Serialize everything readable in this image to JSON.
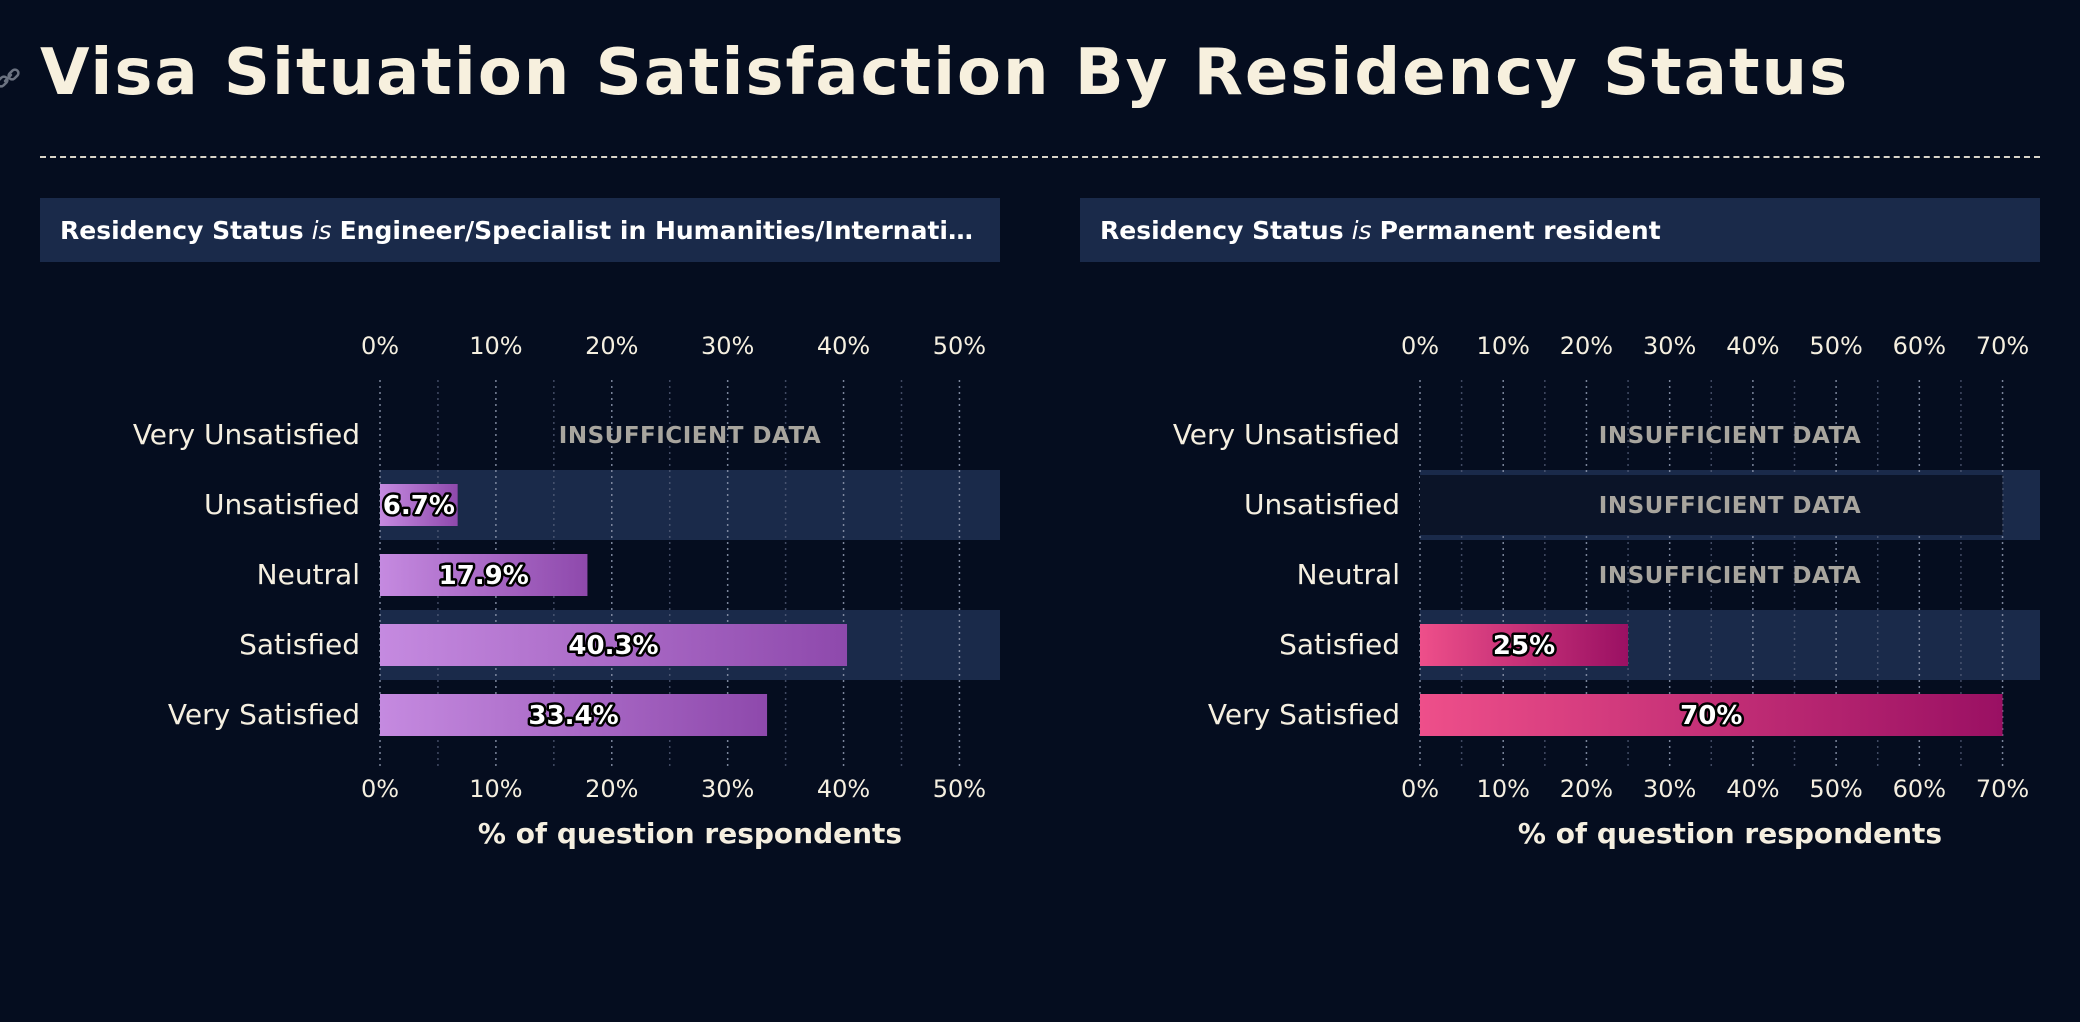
{
  "title": "Visa Situation Satisfaction By Residency Status",
  "colors": {
    "background": "#050d1f",
    "header_bg": "#1a2a4a",
    "band": "#1a2a4a",
    "left_bar_start": "#c58ae0",
    "left_bar_end": "#8e49ac",
    "right_bar_start": "#ee4f8a",
    "right_bar_end": "#9a1063"
  },
  "panels": [
    {
      "filter_key": "Residency Status",
      "filter_op": "is",
      "filter_value": "Engineer/Specialist in Humanities/International ...",
      "insufficient_label": "INSUFFICIENT DATA"
    },
    {
      "filter_key": "Residency Status",
      "filter_op": "is",
      "filter_value": "Permanent resident",
      "insufficient_label": "INSUFFICIENT DATA"
    }
  ],
  "chart_data": [
    {
      "type": "bar",
      "orientation": "horizontal",
      "categories": [
        "Very Unsatisfied",
        "Unsatisfied",
        "Neutral",
        "Satisfied",
        "Very Satisfied"
      ],
      "values": [
        null,
        6.7,
        17.9,
        40.3,
        33.4
      ],
      "value_labels": [
        "",
        "6.7%",
        "17.9%",
        "40.3%",
        "33.4%"
      ],
      "insufficient": [
        true,
        false,
        false,
        false,
        false
      ],
      "xlabel": "% of question respondents",
      "xlim": [
        0,
        53.5
      ],
      "ticks": [
        0,
        10,
        20,
        30,
        40,
        50
      ],
      "tick_labels": [
        "0%",
        "10%",
        "20%",
        "30%",
        "40%",
        "50%"
      ],
      "grid": true
    },
    {
      "type": "bar",
      "orientation": "horizontal",
      "categories": [
        "Very Unsatisfied",
        "Unsatisfied",
        "Neutral",
        "Satisfied",
        "Very Satisfied"
      ],
      "values": [
        null,
        null,
        null,
        25,
        70
      ],
      "value_labels": [
        "",
        "",
        "",
        "25%",
        "70%"
      ],
      "insufficient": [
        true,
        true,
        true,
        false,
        false
      ],
      "xlabel": "% of question respondents",
      "xlim": [
        0,
        74.5
      ],
      "ticks": [
        0,
        10,
        20,
        30,
        40,
        50,
        60,
        70
      ],
      "tick_labels": [
        "0%",
        "10%",
        "20%",
        "30%",
        "40%",
        "50%",
        "60%",
        "70%"
      ],
      "grid": true
    }
  ]
}
